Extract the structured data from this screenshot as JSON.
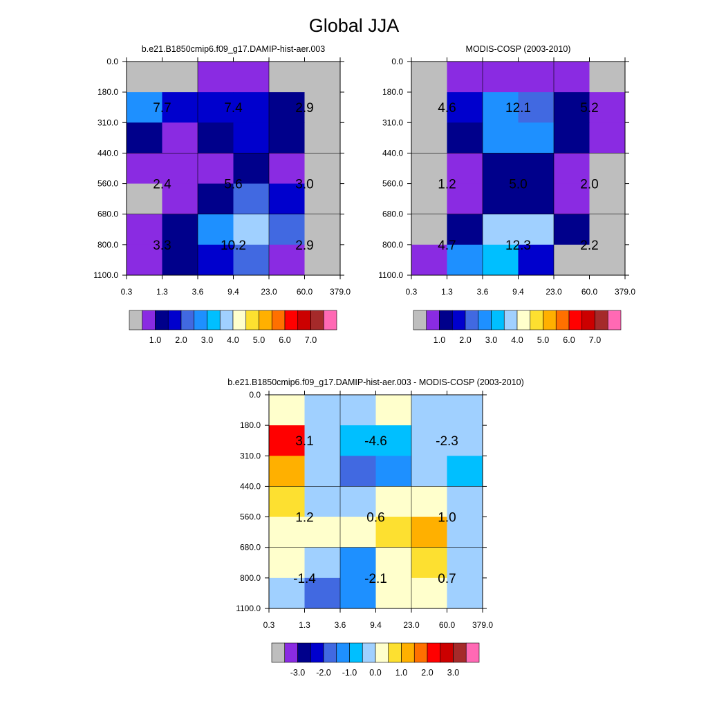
{
  "title": "Global JJA",
  "colors": {
    "abs_palette": [
      "#bebebe",
      "#8a2be2",
      "#00008b",
      "#0000cd",
      "#4169e1",
      "#1e90ff",
      "#00bfff",
      "#a0d0ff",
      "#ffffcc",
      "#fde030",
      "#ffb000",
      "#ff7000",
      "#ff0000",
      "#cc0000",
      "#a52a2a",
      "#ff69b4"
    ],
    "diff_palette": [
      "#bebebe",
      "#8a2be2",
      "#00008b",
      "#0000cd",
      "#4169e1",
      "#1e90ff",
      "#00bfff",
      "#a0d0ff",
      "#ffffcc",
      "#fde030",
      "#ffb000",
      "#ff7000",
      "#ff0000",
      "#cc0000",
      "#a52a2a",
      "#ff69b4"
    ]
  },
  "chart_data": [
    {
      "type": "heatmap",
      "title": "b.e21.B1850cmip6.f09_g17.DAMIP-hist-aer.003",
      "x_ticks": [
        "0.3",
        "1.3",
        "3.6",
        "9.4",
        "23.0",
        "60.0",
        "379.0"
      ],
      "y_ticks": [
        "0.0",
        "180.0",
        "310.0",
        "440.0",
        "560.0",
        "680.0",
        "800.0",
        "1100.0"
      ],
      "cells": [
        [
          0,
          0,
          1,
          1,
          0,
          0
        ],
        [
          5,
          3,
          3,
          3,
          2,
          0
        ],
        [
          2,
          1,
          2,
          3,
          2,
          0
        ],
        [
          1,
          1,
          1,
          2,
          1,
          0
        ],
        [
          0,
          1,
          2,
          4,
          3,
          0
        ],
        [
          1,
          2,
          5,
          7,
          4,
          0
        ],
        [
          1,
          2,
          3,
          4,
          1,
          0
        ]
      ],
      "block_labels": [
        [
          "7.7",
          "7.4",
          "2.9"
        ],
        [
          "2.4",
          "5.6",
          "3.0"
        ],
        [
          "3.3",
          "10.2",
          "2.9"
        ]
      ],
      "colorbar": {
        "labels": [
          "1.0",
          "2.0",
          "3.0",
          "4.0",
          "5.0",
          "6.0",
          "7.0"
        ]
      }
    },
    {
      "type": "heatmap",
      "title": "MODIS-COSP (2003-2010)",
      "x_ticks": [
        "0.3",
        "1.3",
        "3.6",
        "9.4",
        "23.0",
        "60.0",
        "379.0"
      ],
      "y_ticks": [
        "0.0",
        "180.0",
        "310.0",
        "440.0",
        "560.0",
        "680.0",
        "800.0",
        "1100.0"
      ],
      "cells": [
        [
          0,
          1,
          1,
          1,
          1,
          0
        ],
        [
          0,
          3,
          5,
          4,
          2,
          1
        ],
        [
          0,
          2,
          5,
          5,
          2,
          1
        ],
        [
          0,
          1,
          2,
          2,
          1,
          0
        ],
        [
          0,
          1,
          2,
          2,
          1,
          0
        ],
        [
          0,
          2,
          7,
          7,
          2,
          0
        ],
        [
          1,
          5,
          6,
          3,
          0,
          0
        ]
      ],
      "block_labels": [
        [
          "4.6",
          "12.1",
          "5.2"
        ],
        [
          "1.2",
          "5.0",
          "2.0"
        ],
        [
          "4.7",
          "12.3",
          "2.2"
        ]
      ],
      "colorbar": {
        "labels": [
          "1.0",
          "2.0",
          "3.0",
          "4.0",
          "5.0",
          "6.0",
          "7.0"
        ]
      }
    },
    {
      "type": "heatmap",
      "title": "b.e21.B1850cmip6.f09_g17.DAMIP-hist-aer.003 - MODIS-COSP (2003-2010)",
      "x_ticks": [
        "0.3",
        "1.3",
        "3.6",
        "9.4",
        "23.0",
        "60.0",
        "379.0"
      ],
      "y_ticks": [
        "0.0",
        "180.0",
        "310.0",
        "440.0",
        "560.0",
        "680.0",
        "800.0",
        "1100.0"
      ],
      "cells": [
        [
          8,
          7,
          7,
          8,
          7,
          7
        ],
        [
          12,
          7,
          6,
          6,
          7,
          7
        ],
        [
          10,
          7,
          4,
          5,
          7,
          6
        ],
        [
          9,
          7,
          7,
          8,
          8,
          7
        ],
        [
          8,
          8,
          8,
          9,
          10,
          7
        ],
        [
          8,
          7,
          5,
          8,
          9,
          7
        ],
        [
          7,
          4,
          5,
          8,
          8,
          7
        ]
      ],
      "block_labels": [
        [
          "3.1",
          "-4.6",
          "-2.3"
        ],
        [
          "1.2",
          "0.6",
          "1.0"
        ],
        [
          "-1.4",
          "-2.1",
          "0.7"
        ]
      ],
      "colorbar": {
        "labels": [
          "-3.0",
          "-2.0",
          "-1.0",
          "0.0",
          "1.0",
          "2.0",
          "3.0"
        ]
      }
    }
  ]
}
